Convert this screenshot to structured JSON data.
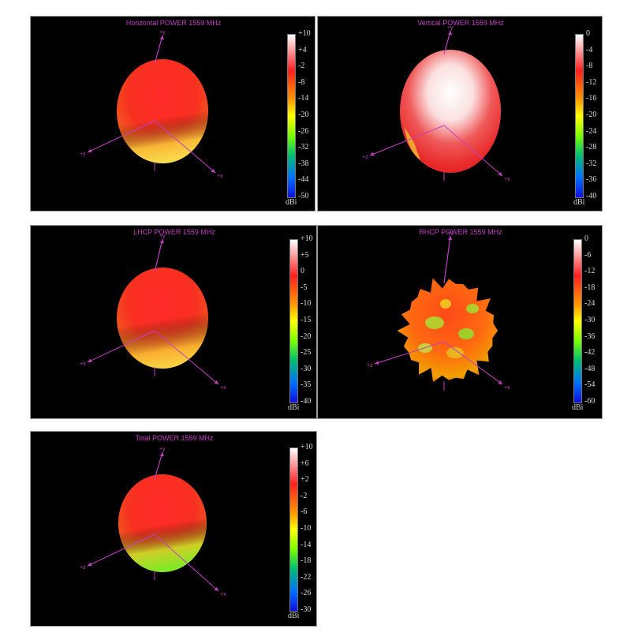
{
  "chart_data": [
    {
      "type": "other",
      "title": "Horizontal POWER 1559  MHz",
      "axes": {
        "y": "+y",
        "z": "+z",
        "x": "+x"
      },
      "colorbar": {
        "ticks": [
          "+10",
          "+4",
          "-2",
          "-8",
          "-14",
          "-20",
          "-26",
          "-32",
          "-38",
          "-44",
          "-50"
        ],
        "unit": "dBi",
        "range": [
          -50,
          10
        ]
      },
      "pattern": "horizontal"
    },
    {
      "type": "other",
      "title": "Vertical POWER 1559  MHz",
      "axes": {
        "y": "+y",
        "z": "+z",
        "x": "+x"
      },
      "colorbar": {
        "ticks": [
          "0",
          "-4",
          "-8",
          "-12",
          "-16",
          "-20",
          "-24",
          "-28",
          "-32",
          "-36",
          "-40"
        ],
        "unit": "dBi",
        "range": [
          -40,
          0
        ]
      },
      "pattern": "vertical"
    },
    {
      "type": "other",
      "title": "LHCP POWER 1559  MHz",
      "axes": {
        "y": "+y",
        "z": "+z",
        "x": "+x"
      },
      "colorbar": {
        "ticks": [
          "+10",
          "+5",
          "0",
          "-5",
          "-10",
          "-15",
          "-20",
          "-25",
          "-30",
          "-35",
          "-40"
        ],
        "unit": "dBi",
        "range": [
          -40,
          10
        ]
      },
      "pattern": "lhcp"
    },
    {
      "type": "other",
      "title": "RHCP POWER 1559  MHz",
      "axes": {
        "y": "+y",
        "z": "+z",
        "x": "+x"
      },
      "colorbar": {
        "ticks": [
          "0",
          "-6",
          "-12",
          "-18",
          "-24",
          "-30",
          "-36",
          "-42",
          "-48",
          "-54",
          "-60"
        ],
        "unit": "dBi",
        "range": [
          -60,
          0
        ]
      },
      "pattern": "rhcp"
    },
    {
      "type": "other",
      "title": "Total POWER 1559  MHz",
      "axes": {
        "y": "+y",
        "z": "+z",
        "x": "+x"
      },
      "colorbar": {
        "ticks": [
          "+10",
          "+6",
          "+2",
          "-2",
          "-6",
          "-10",
          "-14",
          "-18",
          "-22",
          "-26",
          "-30"
        ],
        "unit": "dBi",
        "range": [
          -30,
          10
        ]
      },
      "pattern": "total"
    }
  ],
  "colors": {
    "title": "#c040c0",
    "axis": "#c040c0",
    "scale": [
      "#ffffff",
      "#ff2020",
      "#ff9a00",
      "#ffff00",
      "#7cff00",
      "#00c070",
      "#0070ff",
      "#1010e0"
    ]
  }
}
